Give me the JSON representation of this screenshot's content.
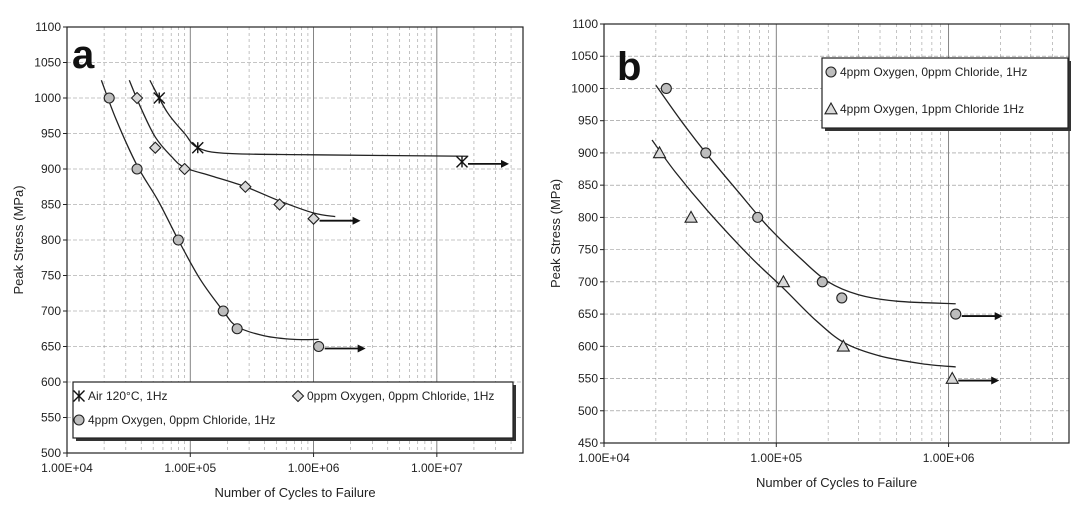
{
  "chart_data": [
    {
      "type": "scatter",
      "panel_label": "a",
      "xlabel": "Number of Cycles to Failure",
      "ylabel": "Peak Stress (MPa)",
      "xscale": "log",
      "xlim": [
        10000,
        50000000
      ],
      "ylim": [
        500,
        1100
      ],
      "x_tick_labels": [
        "1.00E+04",
        "1.00E+05",
        "1.00E+06",
        "1.00E+07"
      ],
      "y_tick_labels": [
        "500",
        "550",
        "600",
        "650",
        "700",
        "750",
        "800",
        "850",
        "900",
        "950",
        "1000",
        "1050",
        "1100"
      ],
      "grid": true,
      "legend_position": "bottom",
      "series": [
        {
          "name": "Air 120°C, 1Hz",
          "marker": "asterisk",
          "points": [
            [
              56000,
              1000
            ],
            [
              115000,
              930
            ],
            [
              16000000,
              910
            ]
          ],
          "runout_arrows": [
            [
              16000000,
              910
            ]
          ]
        },
        {
          "name": "0ppm Oxygen, 0ppm Chloride, 1Hz",
          "marker": "diamond",
          "points": [
            [
              37000,
              1000
            ],
            [
              52000,
              930
            ],
            [
              90000,
              900
            ],
            [
              280000,
              875
            ],
            [
              530000,
              850
            ],
            [
              1000000,
              830
            ]
          ],
          "runout_arrows": [
            [
              1000000,
              830
            ]
          ]
        },
        {
          "name": "4ppm Oxygen, 0ppm Chloride, 1Hz",
          "marker": "circle",
          "points": [
            [
              22000,
              1000
            ],
            [
              37000,
              900
            ],
            [
              80000,
              800
            ],
            [
              185000,
              700
            ],
            [
              240000,
              675
            ],
            [
              1100000,
              650
            ]
          ],
          "runout_arrows": [
            [
              1100000,
              650
            ]
          ]
        }
      ],
      "fit_curves": [
        {
          "series": "Air 120°C, 1Hz",
          "points": [
            [
              47000,
              1025
            ],
            [
              65000,
              980
            ],
            [
              90000,
              950
            ],
            [
              115000,
              930
            ],
            [
              200000,
              922
            ],
            [
              1000000,
              920
            ],
            [
              18000000,
              918
            ]
          ]
        },
        {
          "series": "0ppm Oxygen, 0ppm Chloride, 1Hz",
          "points": [
            [
              32000,
              1025
            ],
            [
              40000,
              985
            ],
            [
              52000,
              945
            ],
            [
              70000,
              918
            ],
            [
              90000,
              902
            ],
            [
              150000,
              890
            ],
            [
              280000,
              875
            ],
            [
              530000,
              855
            ],
            [
              1000000,
              838
            ],
            [
              1500000,
              833
            ]
          ]
        },
        {
          "series": "4ppm Oxygen, 0ppm Chloride, 1Hz",
          "points": [
            [
              19000,
              1025
            ],
            [
              25000,
              970
            ],
            [
              37000,
              905
            ],
            [
              55000,
              855
            ],
            [
              80000,
              800
            ],
            [
              120000,
              745
            ],
            [
              185000,
              700
            ],
            [
              240000,
              678
            ],
            [
              400000,
              665
            ],
            [
              700000,
              660
            ],
            [
              1100000,
              660
            ]
          ]
        }
      ]
    },
    {
      "type": "scatter",
      "panel_label": "b",
      "xlabel": "Number of Cycles to Failure",
      "ylabel": "Peak Stress (MPa)",
      "xscale": "log",
      "xlim": [
        10000,
        5000000
      ],
      "ylim": [
        450,
        1100
      ],
      "x_tick_labels": [
        "1.00E+04",
        "1.00E+05",
        "1.00E+06"
      ],
      "y_tick_labels": [
        "450",
        "500",
        "550",
        "600",
        "650",
        "700",
        "750",
        "800",
        "850",
        "900",
        "950",
        "1000",
        "1050",
        "1100"
      ],
      "grid": true,
      "legend_position": "top-right",
      "series": [
        {
          "name": "4ppm Oxygen, 0ppm Chloride, 1Hz",
          "marker": "circle",
          "points": [
            [
              23000,
              1000
            ],
            [
              39000,
              900
            ],
            [
              78000,
              800
            ],
            [
              185000,
              700
            ],
            [
              240000,
              675
            ],
            [
              1100000,
              650
            ]
          ],
          "runout_arrows": [
            [
              1100000,
              650
            ]
          ]
        },
        {
          "name": "4ppm Oxygen, 1ppm Chloride 1Hz",
          "marker": "triangle",
          "points": [
            [
              21000,
              900
            ],
            [
              32000,
              800
            ],
            [
              110000,
              700
            ],
            [
              245000,
              600
            ],
            [
              1050000,
              550
            ]
          ],
          "runout_arrows": [
            [
              1050000,
              550
            ]
          ]
        }
      ],
      "fit_curves": [
        {
          "series": "4ppm Oxygen, 0ppm Chloride, 1Hz",
          "points": [
            [
              20000,
              1005
            ],
            [
              28000,
              950
            ],
            [
              39000,
              900
            ],
            [
              60000,
              840
            ],
            [
              90000,
              785
            ],
            [
              140000,
              735
            ],
            [
              200000,
              700
            ],
            [
              300000,
              680
            ],
            [
              500000,
              670
            ],
            [
              1100000,
              666
            ]
          ]
        },
        {
          "series": "4ppm Oxygen, 1ppm Chloride 1Hz",
          "points": [
            [
              19000,
              920
            ],
            [
              26000,
              870
            ],
            [
              40000,
              810
            ],
            [
              70000,
              740
            ],
            [
              110000,
              690
            ],
            [
              170000,
              640
            ],
            [
              250000,
              605
            ],
            [
              400000,
              585
            ],
            [
              700000,
              573
            ],
            [
              1100000,
              568
            ]
          ]
        }
      ]
    }
  ]
}
